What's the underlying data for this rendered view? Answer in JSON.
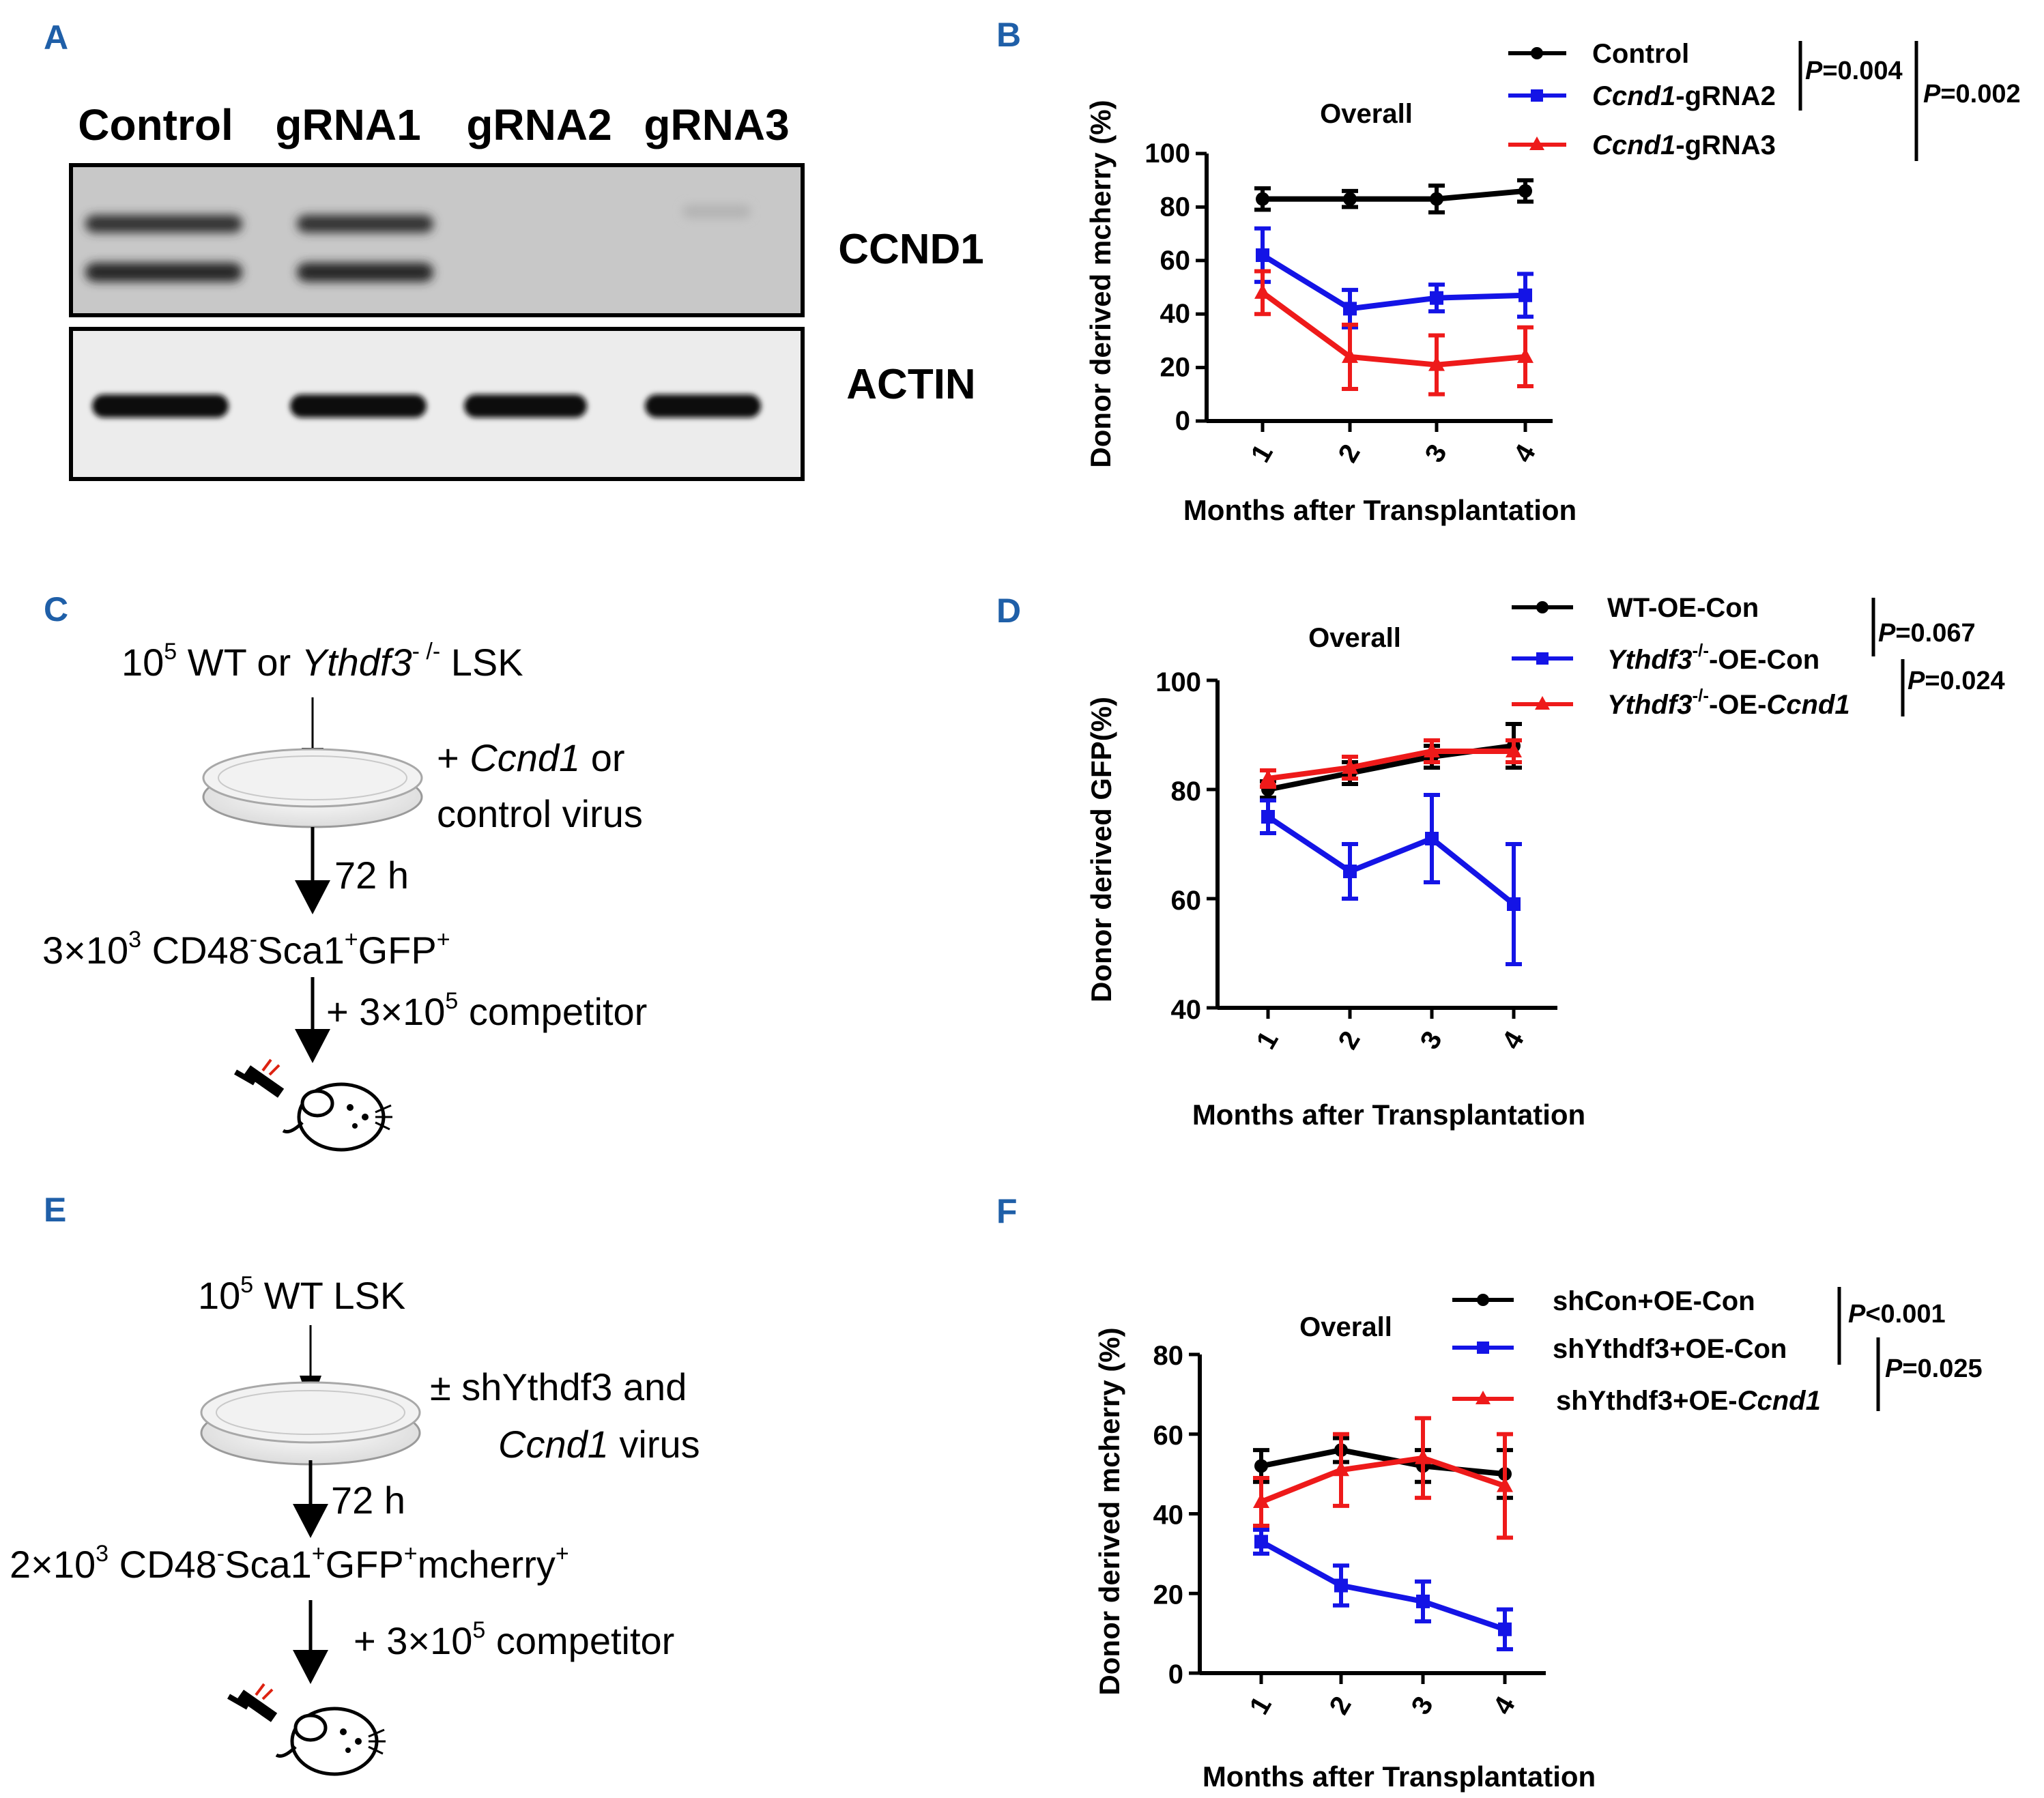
{
  "colors": {
    "control": "#000000",
    "blue": "#1414e6",
    "red": "#ee1a1a",
    "panel_label": "#1f5fa8"
  },
  "panel_a": {
    "label": "A",
    "lanes": [
      "Control",
      "gRNA1",
      "gRNA2",
      "gRNA3"
    ],
    "blots": [
      "CCND1",
      "ACTIN"
    ]
  },
  "panel_c": {
    "label": "C",
    "step1_pre": "10",
    "step1_sup": "5",
    "step1_mid": " WT or ",
    "step1_italic": "Ythdf3",
    "step1_sup2": "- /-",
    "step1_post": " LSK",
    "virus_prefix": "+ ",
    "virus_italic": "Ccnd1",
    "virus_line1_post": " or",
    "virus_line2": "control virus",
    "time": "72 h",
    "cells_pre": "3×10",
    "cells_sup": "3",
    "cells_mid": " CD48",
    "cells_sup_minus": "-",
    "cells_sca": "Sca1",
    "cells_sup_plus": "+",
    "cells_gfp": "GFP",
    "cells_sup_plus2": "+",
    "comp_pre": "+ 3×10",
    "comp_sup": "5",
    "comp_post": " competitor",
    "mouse_icon": "mouse-injection-icon"
  },
  "panel_e": {
    "label": "E",
    "step1_pre": "10",
    "step1_sup": "5",
    "step1_post": " WT LSK",
    "virus_line1": "± shYthdf3 and",
    "virus_italic": "Ccnd1",
    "virus_line2_post": " virus",
    "time": "72 h",
    "cells_pre": "2×10",
    "cells_sup": "3",
    "cells_mid": " CD48",
    "cells_sup_minus": "-",
    "cells_sca": "Sca1",
    "cells_sup_plus": "+",
    "cells_gfp": "GFP",
    "cells_sup_plus2": "+",
    "cells_mch": "mcherry",
    "cells_sup_plus3": "+",
    "comp_pre": "+ 3×10",
    "comp_sup": "5",
    "comp_post": " competitor",
    "mouse_icon": "mouse-injection-icon"
  },
  "chart_data": [
    {
      "panel": "B",
      "type": "line",
      "title": "Overall",
      "xlabel": "Months after Transplantation",
      "ylabel": "Donor derived mcherry (%)",
      "categories": [
        "1",
        "2",
        "3",
        "4"
      ],
      "ylim": [
        0,
        100
      ],
      "yticks": [
        "0",
        "20",
        "40",
        "60",
        "80",
        "100"
      ],
      "series": [
        {
          "name": "Control",
          "name_italic": "",
          "name_post": "Control",
          "color": "#000000",
          "marker": "circle",
          "values": [
            83,
            83,
            83,
            86
          ],
          "errors": [
            4,
            3,
            5,
            4
          ]
        },
        {
          "name": "Ccnd1-gRNA2",
          "name_italic": "Ccnd1",
          "name_post": "-gRNA2",
          "color": "#1414e6",
          "marker": "square",
          "values": [
            62,
            42,
            46,
            47
          ],
          "errors": [
            10,
            7,
            5,
            8
          ]
        },
        {
          "name": "Ccnd1-gRNA3",
          "name_italic": "Ccnd1",
          "name_post": "-gRNA3",
          "color": "#ee1a1a",
          "marker": "triangle",
          "values": [
            48,
            24,
            21,
            24
          ],
          "errors": [
            8,
            12,
            11,
            11
          ]
        }
      ],
      "pvalues": [
        "P=0.004",
        "P=0.002"
      ]
    },
    {
      "panel": "D",
      "type": "line",
      "title": "Overall",
      "xlabel": "Months after Transplantation",
      "ylabel": "Donor derived GFP(%)",
      "categories": [
        "1",
        "2",
        "3",
        "4"
      ],
      "ylim": [
        40,
        100
      ],
      "yticks": [
        "40",
        "60",
        "80",
        "100"
      ],
      "series": [
        {
          "name": "WT-OE-Con",
          "color": "#000000",
          "marker": "circle",
          "values": [
            80,
            83,
            86,
            88
          ],
          "errors": [
            1.5,
            2,
            2,
            4
          ]
        },
        {
          "name": "Ythdf3-/--OE-Con",
          "color": "#1414e6",
          "marker": "square",
          "values": [
            75,
            65,
            71,
            59
          ],
          "errors": [
            3,
            5,
            8,
            11
          ]
        },
        {
          "name": "Ythdf3-/--OE-Ccnd1",
          "color": "#ee1a1a",
          "marker": "triangle",
          "values": [
            82,
            84,
            87,
            87
          ],
          "errors": [
            1.5,
            2,
            2,
            2
          ]
        }
      ],
      "legend": {
        "s1": "WT-OE-Con",
        "s2_italic": "Ythdf3",
        "s2_sup": "-/-",
        "s2_post": "-OE-Con",
        "s3_italic": "Ythdf3",
        "s3_sup": "-/-",
        "s3_mid": "-OE-",
        "s3_italic2": "Ccnd1"
      },
      "pvalues": [
        "P=0.067",
        "P=0.024"
      ]
    },
    {
      "panel": "F",
      "type": "line",
      "title": "Overall",
      "xlabel": "Months after Transplantation",
      "ylabel": "Donor derived mcherry (%)",
      "categories": [
        "1",
        "2",
        "3",
        "4"
      ],
      "ylim": [
        0,
        80
      ],
      "yticks": [
        "0",
        "20",
        "40",
        "60",
        "80"
      ],
      "series": [
        {
          "name": "shCon+OE-Con",
          "color": "#000000",
          "marker": "circle",
          "values": [
            52,
            56,
            52,
            50
          ],
          "errors": [
            4,
            3,
            4,
            6
          ]
        },
        {
          "name": "shYthdf3+OE-Con",
          "color": "#1414e6",
          "marker": "square",
          "values": [
            33,
            22,
            18,
            11
          ],
          "errors": [
            3,
            5,
            5,
            5
          ]
        },
        {
          "name": "shYthdf3+OE-Ccnd1",
          "color": "#ee1a1a",
          "marker": "triangle",
          "values": [
            43,
            51,
            54,
            47
          ],
          "errors": [
            6,
            9,
            10,
            13
          ]
        }
      ],
      "legend": {
        "s1": "shCon+OE-Con",
        "s2": "shYthdf3+OE-Con",
        "s3_pre": "shYthdf3+OE-",
        "s3_italic": "Ccnd1"
      },
      "pvalues": [
        "P<0.001",
        "P=0.025"
      ]
    }
  ]
}
